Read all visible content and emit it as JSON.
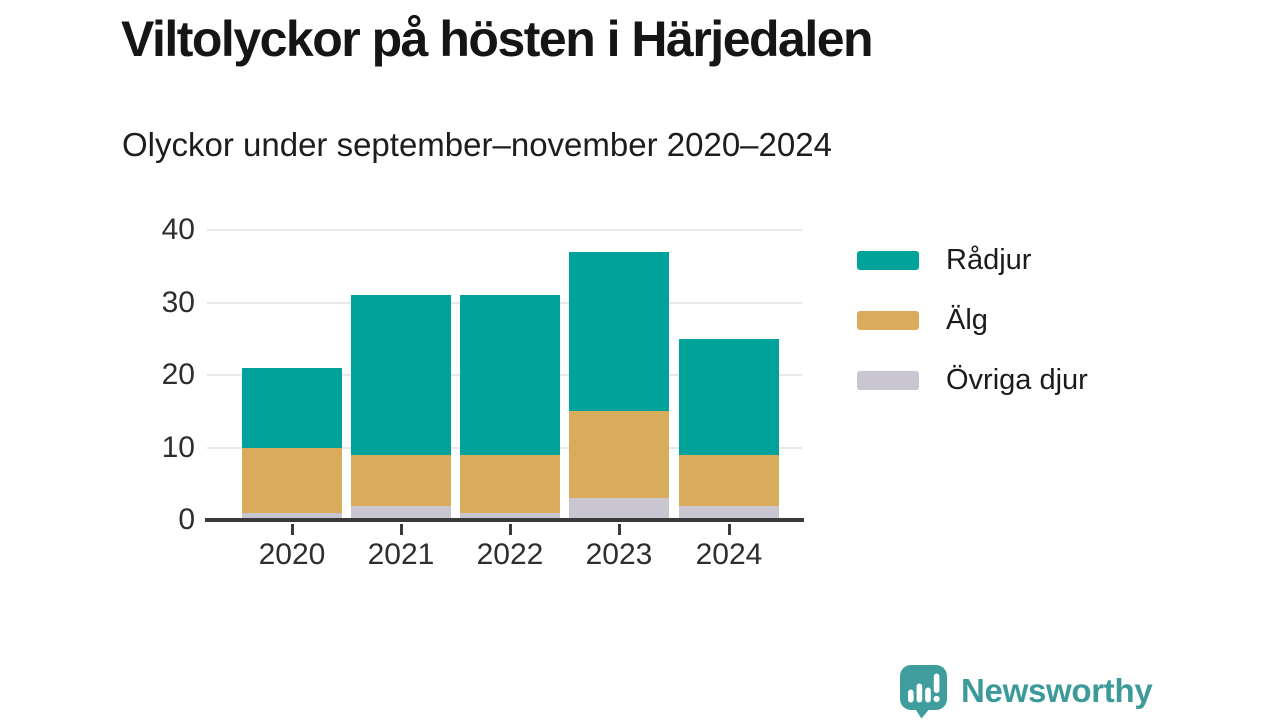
{
  "chart_data": {
    "type": "bar",
    "stacked": true,
    "title": "Viltolyckor på hösten i Härjedalen",
    "subtitle": "Olyckor under september–november 2020–2024",
    "categories": [
      "2020",
      "2021",
      "2022",
      "2023",
      "2024"
    ],
    "series": [
      {
        "name": "Rådjur",
        "color": "#00a29a",
        "values": [
          11,
          22,
          22,
          22,
          16
        ]
      },
      {
        "name": "Älg",
        "color": "#d9ac5c",
        "values": [
          9,
          7,
          8,
          12,
          7
        ]
      },
      {
        "name": "Övriga djur",
        "color": "#c9c6d1",
        "values": [
          1,
          2,
          1,
          3,
          2
        ]
      }
    ],
    "stack_order_bottom_to_top": [
      "Övriga djur",
      "Älg",
      "Rådjur"
    ],
    "totals": [
      21,
      31,
      31,
      37,
      25
    ],
    "xlabel": "",
    "ylabel": "",
    "ylim": [
      0,
      40
    ],
    "yticks": [
      0,
      10,
      20,
      30,
      40
    ],
    "grid": true,
    "legend_position": "right"
  },
  "colors": {
    "axis_line": "#3a3a3a",
    "gridline": "#e9e9e9",
    "tick_label": "#2e2e2e",
    "title": "#151515"
  },
  "footer": {
    "brand": "Newsworthy",
    "brand_color": "#3c9b9a",
    "logo_icon": "bar-chart-speech-bubble-icon"
  }
}
